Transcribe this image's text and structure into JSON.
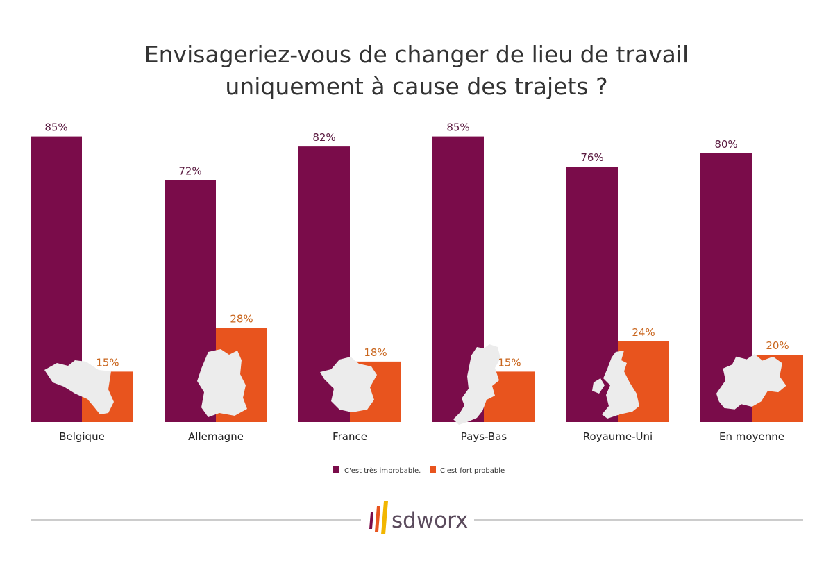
{
  "chart_data": {
    "type": "bar",
    "title": [
      "Envisageriez-vous de changer de lieu de travail",
      "uniquement à cause des trajets ?"
    ],
    "categories": [
      "Belgique",
      "Allemagne",
      "France",
      "Pays-Bas",
      "Royaume-Uni",
      "En moyenne"
    ],
    "series": [
      {
        "name": "C'est très improbable.",
        "values": [
          85,
          72,
          82,
          85,
          76,
          80
        ],
        "color": "#7a0c4a",
        "label_color": "#5a1a40"
      },
      {
        "name": "C'est fort probable",
        "values": [
          15,
          28,
          18,
          15,
          24,
          20
        ],
        "color": "#e8541e",
        "label_color": "#c9661e"
      }
    ],
    "value_suffix": "%",
    "ylim": [
      0,
      100
    ],
    "grid": false,
    "legend": "bottom-center",
    "map_icons": [
      "belgium-map-icon",
      "germany-map-icon",
      "france-map-icon",
      "netherlands-map-icon",
      "united-kingdom-map-icon",
      "europe-map-icon"
    ],
    "map_color": "#ececec"
  },
  "brand": {
    "name": "sdworx",
    "stripe_colors": [
      "#7a0c4a",
      "#e8541e",
      "#f2b600"
    ],
    "rule_color": "#9a9a9a"
  }
}
